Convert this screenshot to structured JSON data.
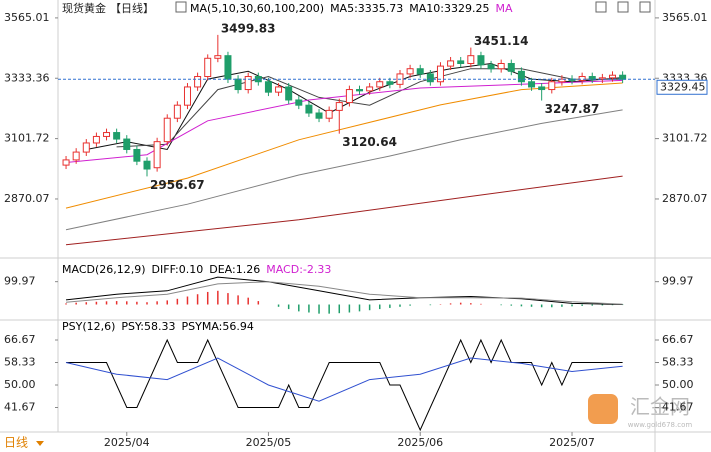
{
  "chart_data": [
    {
      "type": "candlestick",
      "title": "现货黄金",
      "period": "【日线】",
      "headers": [
        "MA(5,10,30,60,100,200)",
        "MA5:3335.73",
        "MA10:3329.25",
        "MA"
      ],
      "header_colors": [
        "#000000",
        "#000000",
        "#000000",
        "#d020d0"
      ],
      "open": [
        3000,
        3020,
        3050,
        3085,
        3110,
        3125,
        3100,
        3060,
        3015,
        2990,
        3090,
        3180,
        3230,
        3300,
        3340,
        3410,
        3420,
        3330,
        3290,
        3340,
        3320,
        3280,
        3300,
        3250,
        3230,
        3200,
        3180,
        3210,
        3240,
        3290,
        3285,
        3300,
        3320,
        3310,
        3350,
        3370,
        3350,
        3320,
        3380,
        3400,
        3390,
        3420,
        3385,
        3370,
        3390,
        3360,
        3320,
        3300,
        3290,
        3320,
        3330,
        3325,
        3340,
        3330,
        3335,
        3345
      ],
      "high": [
        3035,
        3065,
        3100,
        3125,
        3140,
        3140,
        3115,
        3075,
        3030,
        3105,
        3195,
        3245,
        3315,
        3355,
        3425,
        3499.83,
        3435,
        3345,
        3355,
        3355,
        3335,
        3315,
        3315,
        3265,
        3245,
        3215,
        3225,
        3255,
        3305,
        3305,
        3315,
        3335,
        3335,
        3365,
        3385,
        3385,
        3365,
        3395,
        3415,
        3415,
        3451.14,
        3435,
        3400,
        3405,
        3405,
        3375,
        3335,
        3315,
        3335,
        3345,
        3345,
        3355,
        3355,
        3350,
        3360,
        3360
      ],
      "low": [
        2985,
        3005,
        3035,
        3070,
        3095,
        3085,
        3045,
        3000,
        2956.67,
        2975,
        3075,
        3165,
        3215,
        3285,
        3325,
        3395,
        3315,
        3275,
        3275,
        3305,
        3265,
        3265,
        3235,
        3215,
        3185,
        3165,
        3165,
        3120.64,
        3225,
        3270,
        3270,
        3285,
        3295,
        3295,
        3335,
        3335,
        3305,
        3305,
        3365,
        3375,
        3375,
        3370,
        3355,
        3355,
        3345,
        3305,
        3285,
        3247.87,
        3275,
        3305,
        3310,
        3310,
        3315,
        3315,
        3320,
        3315
      ],
      "close": [
        3020,
        3050,
        3085,
        3110,
        3125,
        3100,
        3060,
        3015,
        2985,
        3090,
        3180,
        3230,
        3300,
        3340,
        3410,
        3420,
        3330,
        3290,
        3340,
        3320,
        3280,
        3300,
        3250,
        3230,
        3200,
        3180,
        3210,
        3240,
        3290,
        3285,
        3300,
        3320,
        3310,
        3350,
        3370,
        3350,
        3320,
        3380,
        3400,
        3390,
        3420,
        3385,
        3370,
        3390,
        3360,
        3320,
        3300,
        3290,
        3320,
        3330,
        3325,
        3340,
        3330,
        3335,
        3345,
        3329.45
      ],
      "up_color": "#e8312f",
      "down_color": "#1f9e6a",
      "lines": [
        {
          "color": "#111111",
          "x": [
            2,
            6,
            10,
            14,
            18,
            22,
            26,
            30,
            34,
            38,
            42,
            46,
            50,
            55
          ],
          "values": [
            3060,
            3090,
            3060,
            3330,
            3360,
            3290,
            3200,
            3280,
            3340,
            3370,
            3390,
            3330,
            3320,
            3335.73
          ]
        },
        {
          "color": "#444444",
          "x": [
            5,
            10,
            15,
            20,
            25,
            30,
            35,
            40,
            45,
            50,
            55
          ],
          "values": [
            3070,
            3080,
            3290,
            3340,
            3260,
            3230,
            3320,
            3370,
            3370,
            3330,
            3329.25
          ]
        },
        {
          "color": "#d020d0",
          "x": [
            0,
            8,
            14,
            24,
            35,
            45,
            55
          ],
          "values": [
            3010,
            3040,
            3170,
            3250,
            3296,
            3310,
            3325
          ]
        },
        {
          "color": "#f08c00",
          "x": [
            0,
            12,
            23,
            37,
            45,
            55
          ],
          "values": [
            2835,
            2950,
            3097,
            3231,
            3290,
            3315
          ]
        },
        {
          "color": "#808080",
          "x": [
            0,
            12,
            23,
            32,
            39,
            47,
            55
          ],
          "values": [
            2752,
            2850,
            2962,
            3035,
            3097,
            3160,
            3212
          ]
        },
        {
          "color": "#a02020",
          "x": [
            0,
            23,
            40,
            55
          ],
          "values": [
            2694,
            2790,
            2880,
            2958
          ]
        }
      ],
      "annotations": [
        {
          "x": 15,
          "y": 3499.83
        },
        {
          "x": 40,
          "y": 3451.14
        },
        {
          "x": 27,
          "y": 3120.64
        },
        {
          "x": 8,
          "y": 2956.67
        },
        {
          "x": 47,
          "y": 3247.87
        }
      ],
      "ylim": [
        2655,
        3603
      ],
      "yticks": [
        3565.01,
        3333.36,
        3101.72,
        2870.07
      ],
      "xlim": [
        -0.4,
        58.2
      ]
    },
    {
      "type": "macd",
      "headers": [
        "MACD(26,12,9)",
        "DIFF:0.10",
        "DEA:1.26",
        "MACD:-2.33"
      ],
      "header_colors": [
        "#000000",
        "#000000",
        "#000000",
        "#d020d0"
      ],
      "series": [
        {
          "color": "#000000",
          "x": [
            0,
            5,
            10,
            15,
            20,
            25,
            30,
            35,
            40,
            45,
            50,
            55
          ],
          "values": [
            20,
            45,
            60,
            120,
            100,
            60,
            20,
            30,
            35,
            25,
            5,
            0.1
          ]
        },
        {
          "color": "#888888",
          "x": [
            0,
            5,
            10,
            15,
            20,
            25,
            30,
            35,
            40,
            45,
            50,
            55
          ],
          "values": [
            10,
            30,
            45,
            90,
            100,
            80,
            45,
            30,
            30,
            28,
            12,
            1.26
          ]
        }
      ],
      "histogram": [
        5,
        8,
        10,
        12,
        14,
        15,
        14,
        12,
        10,
        14,
        18,
        25,
        35,
        45,
        55,
        60,
        50,
        40,
        30,
        15,
        0,
        -10,
        -20,
        -30,
        -35,
        -40,
        -40,
        -38,
        -35,
        -30,
        -25,
        -20,
        -15,
        -10,
        -5,
        0,
        -3,
        2,
        5,
        8,
        6,
        3,
        0,
        -3,
        -5,
        -8,
        -10,
        -12,
        -12,
        -10,
        -8,
        -6,
        -5,
        -4,
        -3,
        -2.33
      ],
      "up_color": "#e8312f",
      "down_color": "#1f9e6a",
      "ylim": [
        -59,
        186
      ],
      "yticks": [
        99.97
      ],
      "xlim": [
        -0.4,
        58.2
      ]
    },
    {
      "type": "psy",
      "headers": [
        "PSY(12,6)",
        "PSY:58.33",
        "PSYMA:56.94"
      ],
      "header_colors": [
        "#000000",
        "#000000",
        "#000000"
      ],
      "series": [
        {
          "color": "#000000",
          "values": [
            58.33,
            58.33,
            58.33,
            58.33,
            58.33,
            50,
            41.67,
            41.67,
            50,
            58.33,
            66.67,
            58.33,
            58.33,
            58.33,
            66.67,
            58.33,
            50,
            41.67,
            41.67,
            41.67,
            41.67,
            41.67,
            50,
            41.67,
            41.67,
            50,
            58.33,
            58.33,
            58.33,
            58.33,
            58.33,
            58.33,
            50,
            50,
            41.67,
            33.33,
            41.67,
            50,
            58.33,
            66.67,
            58.33,
            66.67,
            58.33,
            66.67,
            58.33,
            58.33,
            58.33,
            50,
            58.33,
            50,
            58.33,
            58.33,
            58.33,
            58.33,
            58.33,
            58.33
          ]
        },
        {
          "color": "#3050d0",
          "x": [
            0,
            5,
            10,
            15,
            20,
            25,
            30,
            35,
            40,
            45,
            50,
            55
          ],
          "values": [
            58.33,
            54,
            52,
            60,
            50,
            44,
            52,
            54,
            60,
            58,
            55,
            56.94
          ]
        }
      ],
      "ylim": [
        32.6,
        68.89
      ],
      "yticks": [
        66.67,
        58.33,
        {
          "value": 50,
          "label": "50.00"
        },
        41.67
      ],
      "xticks": [
        {
          "value": 6,
          "label": "2025/04"
        },
        {
          "value": 20,
          "label": "2025/05"
        },
        {
          "value": 35,
          "label": "2025/06"
        },
        {
          "value": 50,
          "label": "2025/07"
        }
      ],
      "xlim": [
        -0.4,
        58.2
      ]
    }
  ],
  "ui": {
    "period_button": "日线",
    "watermark": "汇金网",
    "watermark_url": "www.gold678.com"
  }
}
